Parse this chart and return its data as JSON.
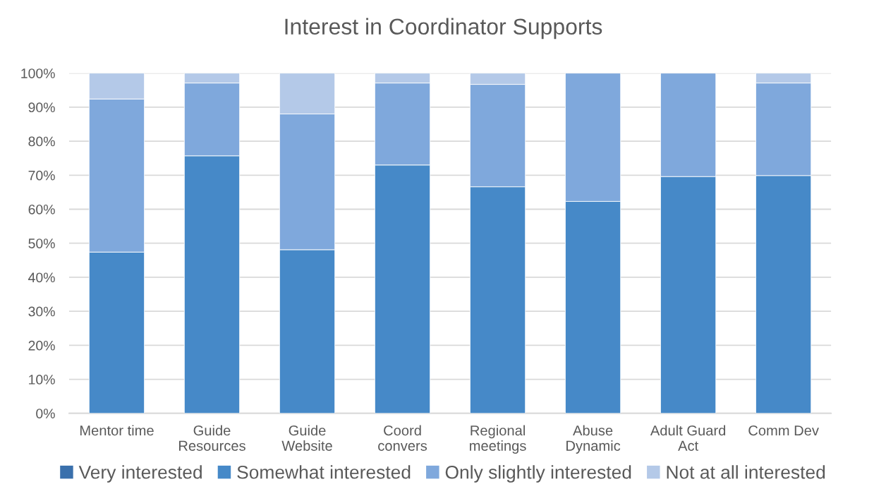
{
  "chart_data": {
    "type": "bar",
    "stacked": true,
    "title": "Interest in Coordinator Supports",
    "categories": [
      "Mentor time",
      "Guide\nResources",
      "Guide\nWebsite",
      "Coord\nconvers",
      "Regional\nmeetings",
      "Abuse\nDynamic",
      "Adult Guard\nAct",
      "Comm Dev"
    ],
    "series": [
      {
        "name": "Very interested",
        "color": "#3a70ac",
        "values": [
          0,
          0,
          0,
          0,
          0,
          0,
          0,
          0
        ]
      },
      {
        "name": "Somewhat interested",
        "color": "#4689c8",
        "values": [
          47.4,
          75.7,
          48.1,
          73.0,
          66.6,
          62.3,
          69.6,
          69.9
        ]
      },
      {
        "name": "Only slightly interested",
        "color": "#7fa8dc",
        "values": [
          45.0,
          21.4,
          39.9,
          24.1,
          30.1,
          37.7,
          30.4,
          27.2
        ]
      },
      {
        "name": "Not at all interested",
        "color": "#b4c9e8",
        "values": [
          7.6,
          2.9,
          12.0,
          2.9,
          3.3,
          0,
          0,
          2.9
        ]
      }
    ],
    "ylim": [
      0,
      100
    ],
    "yticks": [
      {
        "value": 0,
        "label": "0%"
      },
      {
        "value": 10,
        "label": "10%"
      },
      {
        "value": 20,
        "label": "20%"
      },
      {
        "value": 30,
        "label": "30%"
      },
      {
        "value": 40,
        "label": "40%"
      },
      {
        "value": 50,
        "label": "50%"
      },
      {
        "value": 60,
        "label": "60%"
      },
      {
        "value": 70,
        "label": "70%"
      },
      {
        "value": 80,
        "label": "80%"
      },
      {
        "value": 90,
        "label": "90%"
      },
      {
        "value": 100,
        "label": "100%"
      }
    ],
    "grid": "y",
    "legend": "bottom"
  }
}
